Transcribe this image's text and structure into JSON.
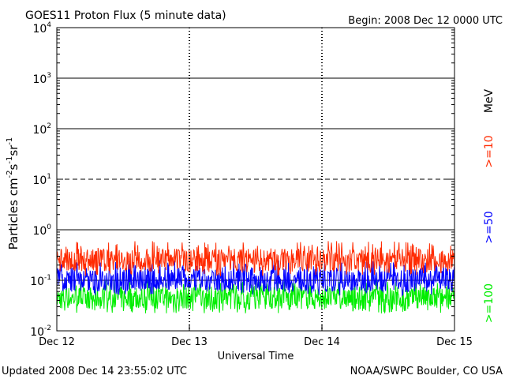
{
  "header": {
    "title": "GOES11 Proton Flux (5 minute data)",
    "begin": "Begin: 2008 Dec 12 0000 UTC"
  },
  "footer": {
    "updated": "Updated 2008 Dec 14 23:55:02 UTC",
    "credit": "NOAA/SWPC Boulder, CO USA"
  },
  "chart_data": {
    "type": "line",
    "title": "GOES11 Proton Flux (5 minute data)",
    "xlabel": "Universal Time",
    "ylabel_parts": [
      "Particles cm",
      "-2",
      "s",
      "-1",
      "sr",
      "-1"
    ],
    "y_scale": "log",
    "ylim": [
      0.01,
      10000
    ],
    "y_ticks": [
      {
        "base": "10",
        "exp": "-2"
      },
      {
        "base": "10",
        "exp": "-1"
      },
      {
        "base": "10",
        "exp": "0"
      },
      {
        "base": "10",
        "exp": "1"
      },
      {
        "base": "10",
        "exp": "2"
      },
      {
        "base": "10",
        "exp": "3"
      },
      {
        "base": "10",
        "exp": "4"
      }
    ],
    "x_ticks": [
      "Dec 12",
      "Dec 13",
      "Dec 14",
      "Dec 15"
    ],
    "xlim": [
      "2008-12-12 00:00 UTC",
      "2008-12-15 00:00 UTC"
    ],
    "legend_unit": "MeV",
    "reference_lines": [
      {
        "value": 1,
        "style": "solid"
      },
      {
        "value": 10,
        "style": "dashed"
      },
      {
        "value": 100,
        "style": "solid"
      },
      {
        "value": 1000,
        "style": "solid"
      },
      {
        "value": 0.1,
        "style": "solid"
      }
    ],
    "series": [
      {
        "name": ">=10",
        "color": "#ff2a00",
        "level": 0.25,
        "min": 0.12,
        "max": 0.6
      },
      {
        "name": ">=50",
        "color": "#0000ff",
        "level": 0.1,
        "min": 0.05,
        "max": 0.25
      },
      {
        "name": ">=100",
        "color": "#00ee00",
        "level": 0.045,
        "min": 0.022,
        "max": 0.1
      }
    ]
  }
}
